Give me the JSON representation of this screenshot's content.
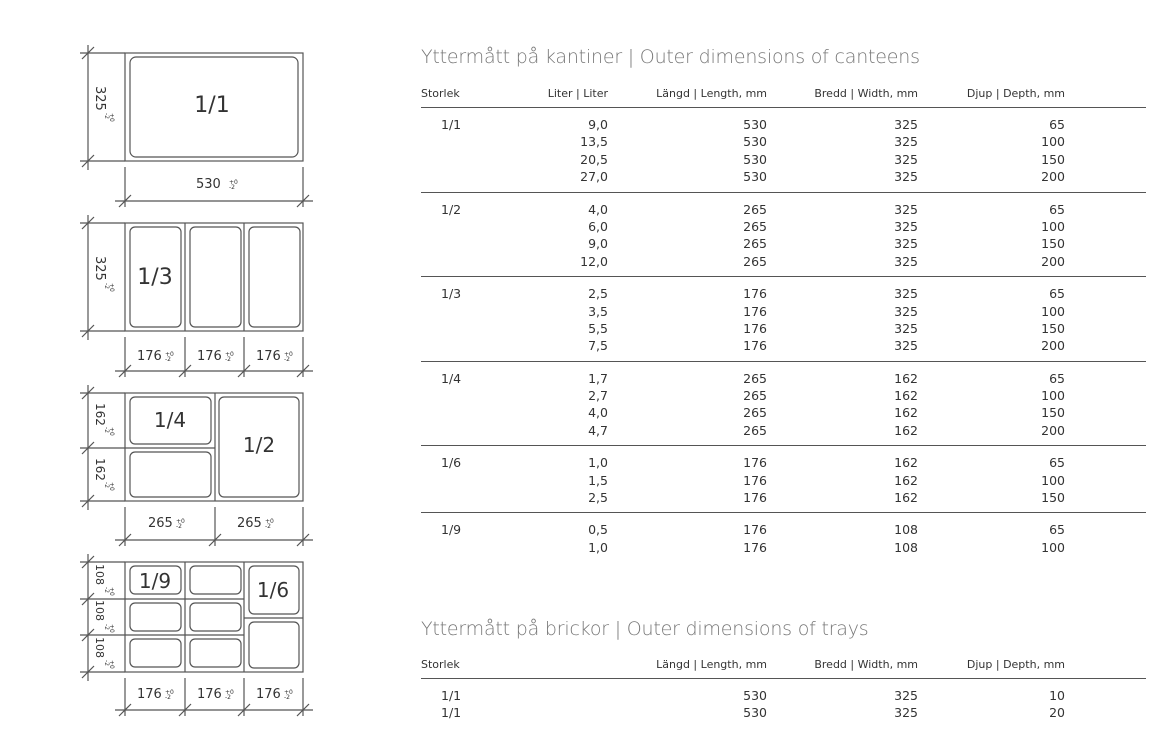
{
  "diagrams": {
    "d1": {
      "label": "1/1",
      "height": "325",
      "width": "530",
      "tol_plus": "+0",
      "tol_minus": "-2"
    },
    "d2": {
      "label": "1/3",
      "height": "325",
      "widths": [
        "176",
        "176",
        "176"
      ]
    },
    "d3": {
      "label_a": "1/4",
      "label_b": "1/2",
      "heights": [
        "162",
        "162"
      ],
      "widths": [
        "265",
        "265"
      ]
    },
    "d4": {
      "label_a": "1/9",
      "label_b": "1/6",
      "heights": [
        "108",
        "108",
        "108"
      ],
      "widths": [
        "176",
        "176",
        "176"
      ]
    }
  },
  "canteens": {
    "title": "Yttermått på kantiner | Outer dimensions of canteens",
    "headers": [
      "Storlek",
      "Liter | Liter",
      "Längd | Length, mm",
      "Bredd | Width, mm",
      "Djup | Depth, mm"
    ],
    "groups": [
      {
        "size": "1/1",
        "rows": [
          [
            "9,0",
            "530",
            "325",
            "65"
          ],
          [
            "13,5",
            "530",
            "325",
            "100"
          ],
          [
            "20,5",
            "530",
            "325",
            "150"
          ],
          [
            "27,0",
            "530",
            "325",
            "200"
          ]
        ]
      },
      {
        "size": "1/2",
        "rows": [
          [
            "4,0",
            "265",
            "325",
            "65"
          ],
          [
            "6,0",
            "265",
            "325",
            "100"
          ],
          [
            "9,0",
            "265",
            "325",
            "150"
          ],
          [
            "12,0",
            "265",
            "325",
            "200"
          ]
        ]
      },
      {
        "size": "1/3",
        "rows": [
          [
            "2,5",
            "176",
            "325",
            "65"
          ],
          [
            "3,5",
            "176",
            "325",
            "100"
          ],
          [
            "5,5",
            "176",
            "325",
            "150"
          ],
          [
            "7,5",
            "176",
            "325",
            "200"
          ]
        ]
      },
      {
        "size": "1/4",
        "rows": [
          [
            "1,7",
            "265",
            "162",
            "65"
          ],
          [
            "2,7",
            "265",
            "162",
            "100"
          ],
          [
            "4,0",
            "265",
            "162",
            "150"
          ],
          [
            "4,7",
            "265",
            "162",
            "200"
          ]
        ]
      },
      {
        "size": "1/6",
        "rows": [
          [
            "1,0",
            "176",
            "162",
            "65"
          ],
          [
            "1,5",
            "176",
            "162",
            "100"
          ],
          [
            "2,5",
            "176",
            "162",
            "150"
          ]
        ]
      },
      {
        "size": "1/9",
        "rows": [
          [
            "0,5",
            "176",
            "108",
            "65"
          ],
          [
            "1,0",
            "176",
            "108",
            "100"
          ]
        ]
      }
    ]
  },
  "trays": {
    "title": "Yttermått på brickor | Outer dimensions of trays",
    "headers": [
      "Storlek",
      "Längd | Length, mm",
      "Bredd | Width, mm",
      "Djup | Depth, mm"
    ],
    "rows": [
      [
        "1/1",
        "530",
        "325",
        "10"
      ],
      [
        "1/1",
        "530",
        "325",
        "20"
      ]
    ]
  }
}
